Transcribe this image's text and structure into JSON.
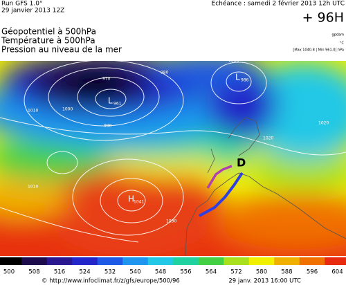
{
  "header": {
    "run": "Run GFS 1.0°",
    "date": "29 janvier 2013 12Z",
    "echeance": "Echéance : samedi 2 février 2013 12h UTC",
    "lead": "+ 96H",
    "fields": [
      "Géopotentiel à 500hPa",
      "Température à 500hPa",
      "Pression au niveau de la mer"
    ],
    "units": [
      "gpdam",
      "°C",
      "[Max 1040.8 | Min 961.0] hPa"
    ]
  },
  "map": {
    "pressure_centers": [
      {
        "type": "L",
        "value": 961
      },
      {
        "type": "L",
        "value": 986
      },
      {
        "type": "H",
        "value": 1041
      }
    ],
    "marker": "D",
    "isobar_labels": [
      970,
      980,
      990,
      1000,
      1010,
      1020,
      1030,
      1010,
      1020,
      1000
    ]
  },
  "colorbar": {
    "ticks": [
      500,
      508,
      516,
      524,
      532,
      540,
      548,
      556,
      564,
      572,
      580,
      588,
      596,
      604
    ],
    "colors": [
      "#000000",
      "#1c0c4c",
      "#2a1890",
      "#2326c8",
      "#1e5ae6",
      "#1e96f0",
      "#22c8e6",
      "#20d2a0",
      "#44d044",
      "#a8e01e",
      "#f0f000",
      "#f0b000",
      "#f07000",
      "#e82a10"
    ]
  },
  "footer": {
    "url": "© http://www.infoclimat.fr/z/gfs/europe/500/96",
    "time": "29 janv. 2013 16:00 UTC"
  }
}
